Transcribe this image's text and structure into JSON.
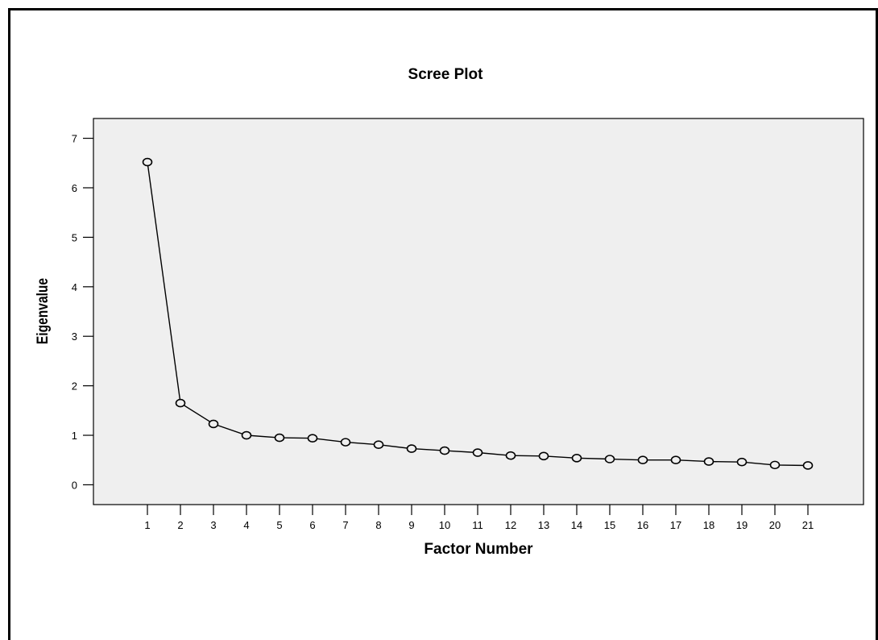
{
  "chart_data": {
    "type": "line",
    "title": "Scree Plot",
    "xlabel": "Factor Number",
    "ylabel": "Eigenvalue",
    "x": [
      1,
      2,
      3,
      4,
      5,
      6,
      7,
      8,
      9,
      10,
      11,
      12,
      13,
      14,
      15,
      16,
      17,
      18,
      19,
      20,
      21
    ],
    "series": [
      {
        "values": [
          6.52,
          1.65,
          1.23,
          1.0,
          0.95,
          0.94,
          0.86,
          0.81,
          0.73,
          0.69,
          0.65,
          0.59,
          0.58,
          0.54,
          0.52,
          0.5,
          0.5,
          0.47,
          0.46,
          0.4,
          0.39
        ]
      }
    ],
    "ylim": [
      -0.4,
      7.4
    ],
    "yticks": [
      0,
      1,
      2,
      3,
      4,
      5,
      6,
      7
    ],
    "xticks": [
      1,
      2,
      3,
      4,
      5,
      6,
      7,
      8,
      9,
      10,
      11,
      12,
      13,
      14,
      15,
      16,
      17,
      18,
      19,
      20,
      21
    ],
    "marker": "circle",
    "grid": false,
    "legend": false,
    "colors": {
      "plot_background": "#efefef",
      "line": "#000000",
      "marker_fill": "#efefef"
    }
  }
}
